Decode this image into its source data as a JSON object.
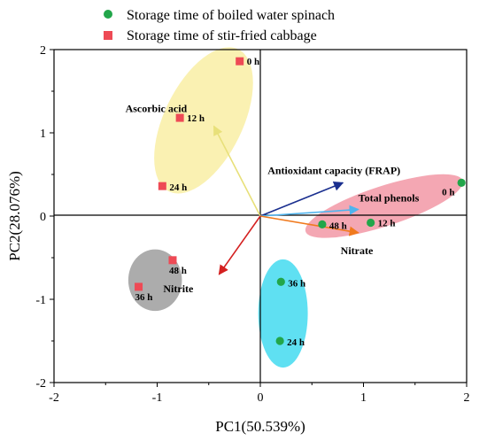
{
  "chart_data": {
    "type": "scatter",
    "xlabel": "PC1(50.539%)",
    "ylabel": "PC2(28.076%)",
    "xlim": [
      -2,
      2
    ],
    "ylim": [
      -2,
      2
    ],
    "x_ticks": [
      "-2",
      "-1",
      "0",
      "1",
      "2"
    ],
    "y_ticks": [
      "-2",
      "-1",
      "0",
      "1",
      "2"
    ],
    "legend_position": "top",
    "series": [
      {
        "name": "Storage time of boiled water spinach",
        "marker": "circle",
        "color": "#22a64a",
        "points": [
          {
            "x": 1.95,
            "y": 0.4,
            "label": "0 h"
          },
          {
            "x": 1.07,
            "y": -0.08,
            "label": "12 h"
          },
          {
            "x": 0.6,
            "y": -0.1,
            "label": "48 h"
          },
          {
            "x": 0.2,
            "y": -0.79,
            "label": "36 h"
          },
          {
            "x": 0.19,
            "y": -1.5,
            "label": "24 h"
          }
        ]
      },
      {
        "name": "Storage time of stir-fried cabbage",
        "marker": "square",
        "color": "#ee4a55",
        "points": [
          {
            "x": -0.2,
            "y": 1.86,
            "label": "0 h"
          },
          {
            "x": -0.78,
            "y": 1.18,
            "label": "12 h"
          },
          {
            "x": -0.95,
            "y": 0.36,
            "label": "24 h"
          },
          {
            "x": -0.85,
            "y": -0.53,
            "label": "48 h"
          },
          {
            "x": -1.18,
            "y": -0.85,
            "label": "36 h"
          }
        ]
      }
    ],
    "vectors": [
      {
        "label": "Ascorbic acid",
        "x": -0.45,
        "y": 1.08,
        "color": "#e8e07a"
      },
      {
        "label": "Antioxidant capacity (FRAP)",
        "x": 0.8,
        "y": 0.4,
        "color": "#1a2f8f"
      },
      {
        "label": "Total phenols",
        "x": 0.95,
        "y": 0.08,
        "color": "#4fb4ee"
      },
      {
        "label": "Nitrate",
        "x": 0.95,
        "y": -0.2,
        "color": "#f07a1e"
      },
      {
        "label": "Nitrite",
        "x": -0.4,
        "y": -0.7,
        "color": "#d42020"
      }
    ],
    "ellipses": [
      {
        "group": "0-24 h cabbage",
        "cx": -0.55,
        "cy": 1.15,
        "rx": 0.38,
        "ry": 0.95,
        "angle_deg": 26,
        "color": "#f8ec98"
      },
      {
        "group": "0-48 h spinach",
        "cx": 1.2,
        "cy": 0.12,
        "rx": 0.8,
        "ry": 0.24,
        "angle_deg": -18,
        "color": "#f08a9a"
      },
      {
        "group": "36-48 h cabbage",
        "cx": -1.02,
        "cy": -0.77,
        "rx": 0.26,
        "ry": 0.37,
        "angle_deg": 0,
        "color": "#909090"
      },
      {
        "group": "24-36 h spinach",
        "cx": 0.22,
        "cy": -1.17,
        "rx": 0.24,
        "ry": 0.65,
        "angle_deg": 0,
        "color": "#29d6ee"
      }
    ]
  }
}
